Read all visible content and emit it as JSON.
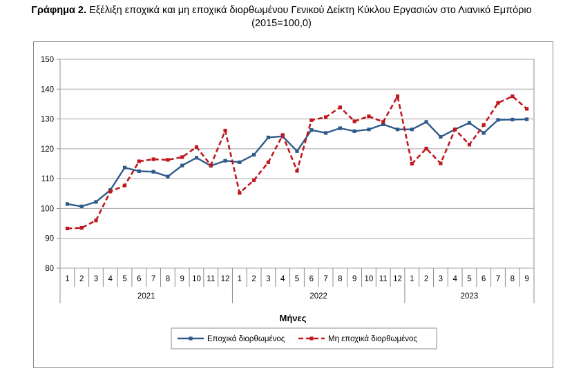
{
  "title": {
    "prefix": "Γράφημα 2.",
    "text": "Εξέλιξη εποχικά και μη εποχικά διορθωμένου Γενικού Δείκτη Κύκλου Εργασιών στο Λιανικό Εμπόριο",
    "subtitle": "(2015=100,0)"
  },
  "chart_data": {
    "type": "line",
    "title": "Γράφημα 2. Εξέλιξη εποχικά και μη εποχικά διορθωμένου Γενικού Δείκτη Κύκλου Εργασιών στο Λιανικό Εμπόριο",
    "subtitle": "(2015=100,0)",
    "xlabel": "Μήνες",
    "ylabel": "",
    "ylim": [
      80,
      150
    ],
    "yticks": [
      80,
      90,
      100,
      110,
      120,
      130,
      140,
      150
    ],
    "grid": true,
    "legend_position": "bottom",
    "categories": [
      "1",
      "2",
      "3",
      "4",
      "5",
      "6",
      "7",
      "8",
      "9",
      "10",
      "11",
      "12",
      "1",
      "2",
      "3",
      "4",
      "5",
      "6",
      "7",
      "8",
      "9",
      "10",
      "11",
      "12",
      "1",
      "2",
      "3",
      "4",
      "5",
      "6",
      "7",
      "8",
      "9"
    ],
    "year_groups": [
      {
        "label": "2021",
        "count": 12
      },
      {
        "label": "2022",
        "count": 12
      },
      {
        "label": "2023",
        "count": 9
      }
    ],
    "series": [
      {
        "name": "Εποχικά διορθωμένος",
        "color": "#2e5b8a",
        "style": "solid",
        "values": [
          101.5,
          100.7,
          102.2,
          106.2,
          113.7,
          112.5,
          112.3,
          110.7,
          114.4,
          117.0,
          114.3,
          116.0,
          115.5,
          118.0,
          123.8,
          124.2,
          119.2,
          126.3,
          125.3,
          126.9,
          125.9,
          126.5,
          128.2,
          126.5,
          126.5,
          129.0,
          124.0,
          126.5,
          128.7,
          125.3,
          129.7,
          129.8,
          129.9
        ]
      },
      {
        "name": "Μη εποχικά διορθωμένος",
        "color": "#c0181f",
        "style": "dashed",
        "values": [
          93.3,
          93.5,
          96.0,
          105.7,
          107.7,
          115.8,
          116.5,
          116.3,
          117.2,
          120.6,
          114.5,
          126.1,
          105.2,
          109.5,
          115.5,
          124.6,
          112.6,
          129.6,
          130.6,
          133.9,
          129.2,
          130.9,
          129.0,
          137.6,
          115.0,
          120.1,
          115.1,
          126.5,
          121.4,
          128.0,
          135.4,
          137.6,
          133.4
        ]
      }
    ]
  }
}
